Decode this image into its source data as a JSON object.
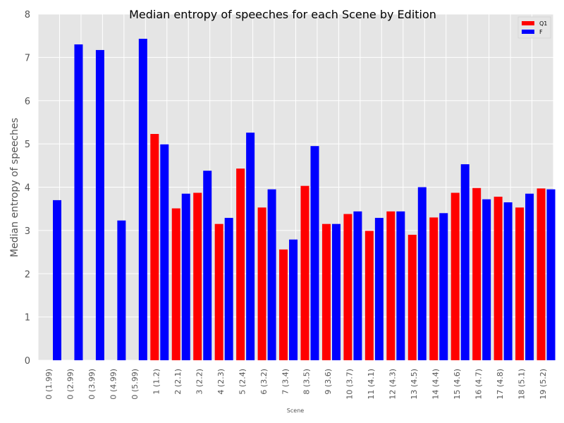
{
  "chart_data": {
    "type": "bar",
    "title": "Median entropy of speeches for each Scene by Edition",
    "xlabel": "Scene",
    "ylabel": "Median entropy of speeches",
    "ylim": [
      0,
      8
    ],
    "yticks": [
      "0",
      "1",
      "2",
      "3",
      "4",
      "5",
      "6",
      "7",
      "8"
    ],
    "grid": true,
    "legend_position": "top-right",
    "categories": [
      "0 (1.99)",
      "0 (2.99)",
      "0 (3.99)",
      "0 (4.99)",
      "0 (5.99)",
      "1 (1.2)",
      "2 (2.1)",
      "3 (2.2)",
      "4 (2.3)",
      "5 (2.4)",
      "6 (3.2)",
      "7 (3.4)",
      "8 (3.5)",
      "9 (3.6)",
      "10 (3.7)",
      "11 (4.1)",
      "12 (4.3)",
      "13 (4.5)",
      "14 (4.4)",
      "15 (4.6)",
      "16 (4.7)",
      "17 (4.8)",
      "18 (5.1)",
      "19 (5.2)"
    ],
    "series": [
      {
        "name": "Q1",
        "color": "#ff0000",
        "values": [
          null,
          null,
          null,
          null,
          null,
          5.23,
          3.51,
          3.87,
          3.15,
          4.43,
          3.53,
          2.56,
          4.03,
          3.15,
          3.38,
          2.99,
          3.44,
          2.9,
          3.3,
          3.87,
          3.98,
          3.78,
          3.53,
          3.97
        ]
      },
      {
        "name": "F",
        "color": "#0000ff",
        "values": [
          3.7,
          7.3,
          7.17,
          3.23,
          7.43,
          4.99,
          3.85,
          4.38,
          3.29,
          5.26,
          3.95,
          2.79,
          4.95,
          3.15,
          3.44,
          3.29,
          3.44,
          4.0,
          3.4,
          4.53,
          3.72,
          3.65,
          3.85,
          3.95
        ]
      }
    ]
  },
  "colors": {
    "plot_background": "#e5e5e5",
    "grid": "#ffffff",
    "q1": "#ff0000",
    "f": "#0000ff"
  }
}
